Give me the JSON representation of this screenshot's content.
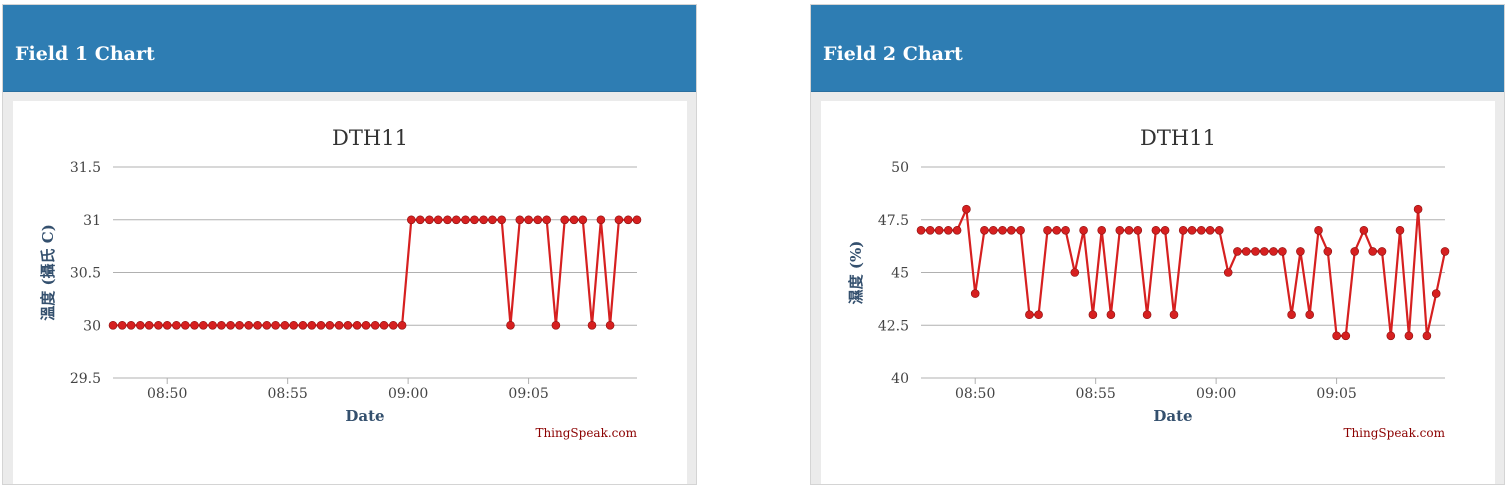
{
  "panels": [
    {
      "title": "Field 1 Chart"
    },
    {
      "title": "Field 2 Chart"
    }
  ],
  "colors": {
    "header": "#2e7db3",
    "series": "#d62020",
    "axis_title": "#34506e",
    "credits": "#8b0000"
  },
  "chart_data": [
    {
      "type": "line",
      "title": "DTH11",
      "xlabel": "Date",
      "ylabel": "溫度 (攝氏 C)",
      "ylim": [
        29.5,
        31.5
      ],
      "yticks": [
        "29.5",
        "30",
        "30.5",
        "31",
        "31.5"
      ],
      "ytick_values": [
        29.5,
        30,
        30.5,
        31,
        31.5
      ],
      "xticks": [
        "08:50",
        "08:55",
        "09:00",
        "09:05"
      ],
      "xtick_values": [
        "08:50",
        "08:55",
        "09:00",
        "09:05"
      ],
      "xlim": [
        "08:47:45",
        "09:09:30"
      ],
      "grid": true,
      "credits": "ThingSpeak.com",
      "series": [
        {
          "x": [
            "08:47:45",
            "08:48:08",
            "08:48:30",
            "08:48:53",
            "08:49:15",
            "08:49:38",
            "08:50:00",
            "08:50:23",
            "08:50:45",
            "08:51:08",
            "08:51:30",
            "08:51:53",
            "08:52:15",
            "08:52:38",
            "08:53:00",
            "08:53:23",
            "08:53:45",
            "08:54:08",
            "08:54:30",
            "08:54:53",
            "08:55:15",
            "08:55:38",
            "08:56:00",
            "08:56:23",
            "08:56:45",
            "08:57:08",
            "08:57:30",
            "08:57:53",
            "08:58:15",
            "08:58:38",
            "08:59:00",
            "08:59:23",
            "08:59:45",
            "09:00:08",
            "09:00:30",
            "09:00:53",
            "09:01:15",
            "09:01:38",
            "09:02:00",
            "09:02:23",
            "09:02:45",
            "09:03:08",
            "09:03:30",
            "09:03:53",
            "09:04:15",
            "09:04:38",
            "09:05:00",
            "09:05:23",
            "09:05:45",
            "09:06:08",
            "09:06:30",
            "09:06:53",
            "09:07:15",
            "09:07:38",
            "09:08:00",
            "09:08:23",
            "09:08:45",
            "09:09:08",
            "09:09:30"
          ],
          "y": [
            30,
            30,
            30,
            30,
            30,
            30,
            30,
            30,
            30,
            30,
            30,
            30,
            30,
            30,
            30,
            30,
            30,
            30,
            30,
            30,
            30,
            30,
            30,
            30,
            30,
            30,
            30,
            30,
            30,
            30,
            30,
            30,
            30,
            31,
            31,
            31,
            31,
            31,
            31,
            31,
            31,
            31,
            31,
            31,
            30,
            31,
            31,
            31,
            31,
            30,
            31,
            31,
            31,
            30,
            31,
            30,
            31,
            31,
            31
          ]
        }
      ]
    },
    {
      "type": "line",
      "title": "DTH11",
      "xlabel": "Date",
      "ylabel": "濕度 (%)",
      "ylim": [
        40,
        50
      ],
      "yticks": [
        "40",
        "42.5",
        "45",
        "47.5",
        "50"
      ],
      "ytick_values": [
        40,
        42.5,
        45,
        47.5,
        50
      ],
      "xticks": [
        "08:50",
        "08:55",
        "09:00",
        "09:05"
      ],
      "xtick_values": [
        "08:50",
        "08:55",
        "09:00",
        "09:05"
      ],
      "xlim": [
        "08:47:45",
        "09:09:30"
      ],
      "grid": true,
      "credits": "ThingSpeak.com",
      "series": [
        {
          "x": [
            "08:47:45",
            "08:48:08",
            "08:48:30",
            "08:48:53",
            "08:49:15",
            "08:49:38",
            "08:50:00",
            "08:50:23",
            "08:50:45",
            "08:51:08",
            "08:51:30",
            "08:51:53",
            "08:52:15",
            "08:52:38",
            "08:53:00",
            "08:53:23",
            "08:53:45",
            "08:54:08",
            "08:54:30",
            "08:54:53",
            "08:55:15",
            "08:55:38",
            "08:56:00",
            "08:56:23",
            "08:56:45",
            "08:57:08",
            "08:57:30",
            "08:57:53",
            "08:58:15",
            "08:58:38",
            "08:59:00",
            "08:59:23",
            "08:59:45",
            "09:00:08",
            "09:00:30",
            "09:00:53",
            "09:01:15",
            "09:01:38",
            "09:02:00",
            "09:02:23",
            "09:02:45",
            "09:03:08",
            "09:03:30",
            "09:03:53",
            "09:04:15",
            "09:04:38",
            "09:05:00",
            "09:05:23",
            "09:05:45",
            "09:06:08",
            "09:06:30",
            "09:06:53",
            "09:07:15",
            "09:07:38",
            "09:08:00",
            "09:08:23",
            "09:08:45",
            "09:09:08",
            "09:09:30"
          ],
          "y": [
            47,
            47,
            47,
            47,
            47,
            48,
            44,
            47,
            47,
            47,
            47,
            47,
            43,
            43,
            47,
            47,
            47,
            45,
            47,
            43,
            47,
            43,
            47,
            47,
            47,
            43,
            47,
            47,
            43,
            47,
            47,
            47,
            47,
            47,
            45,
            46,
            46,
            46,
            46,
            46,
            46,
            43,
            46,
            43,
            47,
            46,
            42,
            42,
            46,
            47,
            46,
            46,
            42,
            47,
            42,
            48,
            42,
            44,
            46
          ]
        }
      ]
    }
  ]
}
